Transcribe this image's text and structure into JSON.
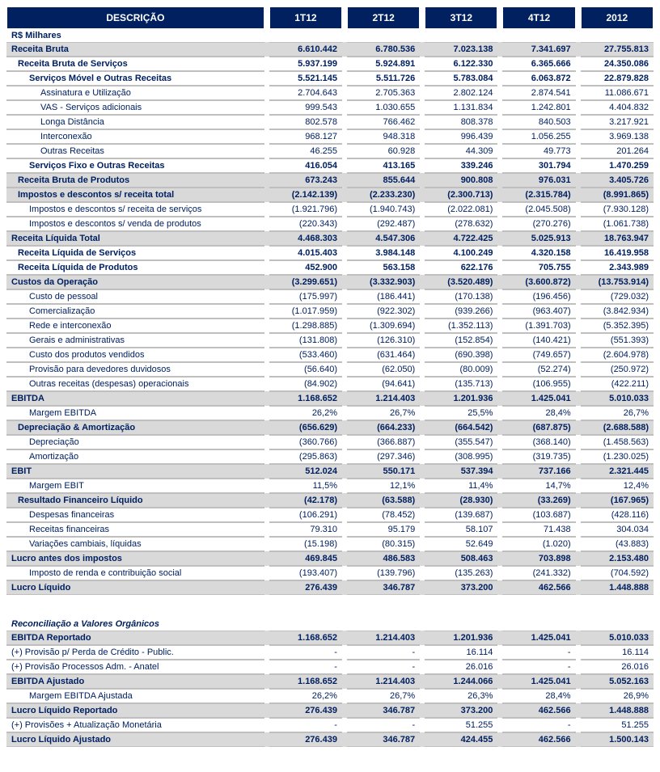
{
  "colors": {
    "header_bg": "#002060",
    "shade_bg": "#d9d9d9",
    "text": "#002060",
    "border": "#bfbfbf"
  },
  "font": {
    "family": "Verdana",
    "size_body": 11,
    "size_header": 12
  },
  "headers": {
    "desc": "DESCRIÇÃO",
    "c1": "1T12",
    "c2": "2T12",
    "c3": "3T12",
    "c4": "4T12",
    "c5": "2012"
  },
  "units": "R$ Milhares",
  "rows": [
    {
      "label": "Receita Bruta",
      "c": [
        "6.610.442",
        "6.780.536",
        "7.023.138",
        "7.341.697",
        "27.755.813"
      ],
      "cls": "shaded bold"
    },
    {
      "label": "Receita Bruta de Serviços",
      "c": [
        "5.937.199",
        "5.924.891",
        "6.122.330",
        "6.365.666",
        "24.350.086"
      ],
      "cls": "bold sub0"
    },
    {
      "label": "Serviços Móvel e Outras Receitas",
      "c": [
        "5.521.145",
        "5.511.726",
        "5.783.084",
        "6.063.872",
        "22.879.828"
      ],
      "cls": "bold sub1"
    },
    {
      "label": "Assinatura e Utilização",
      "c": [
        "2.704.643",
        "2.705.363",
        "2.802.124",
        "2.874.541",
        "11.086.671"
      ],
      "cls": "sub2"
    },
    {
      "label": "VAS - Serviços adicionais",
      "c": [
        "999.543",
        "1.030.655",
        "1.131.834",
        "1.242.801",
        "4.404.832"
      ],
      "cls": "sub2"
    },
    {
      "label": "Longa Distância",
      "c": [
        "802.578",
        "766.462",
        "808.378",
        "840.503",
        "3.217.921"
      ],
      "cls": "sub2"
    },
    {
      "label": "Interconexão",
      "c": [
        "968.127",
        "948.318",
        "996.439",
        "1.056.255",
        "3.969.138"
      ],
      "cls": "sub2"
    },
    {
      "label": "Outras Receitas",
      "c": [
        "46.255",
        "60.928",
        "44.309",
        "49.773",
        "201.264"
      ],
      "cls": "sub2"
    },
    {
      "label": "Serviços Fixo e Outras Receitas",
      "c": [
        "416.054",
        "413.165",
        "339.246",
        "301.794",
        "1.470.259"
      ],
      "cls": "bold sub1"
    },
    {
      "label": "Receita Bruta de Produtos",
      "c": [
        "673.243",
        "855.644",
        "900.808",
        "976.031",
        "3.405.726"
      ],
      "cls": "shaded bold sub0"
    },
    {
      "label": "Impostos e descontos s/ receita total",
      "c": [
        "(2.142.139)",
        "(2.233.230)",
        "(2.300.713)",
        "(2.315.784)",
        "(8.991.865)"
      ],
      "cls": "shaded bold sub0"
    },
    {
      "label": "Impostos e descontos s/ receita de serviços",
      "c": [
        "(1.921.796)",
        "(1.940.743)",
        "(2.022.081)",
        "(2.045.508)",
        "(7.930.128)"
      ],
      "cls": "sub1"
    },
    {
      "label": "Impostos e descontos s/ venda de produtos",
      "c": [
        "(220.343)",
        "(292.487)",
        "(278.632)",
        "(270.276)",
        "(1.061.738)"
      ],
      "cls": "sub1"
    },
    {
      "label": "Receita Líquida Total",
      "c": [
        "4.468.303",
        "4.547.306",
        "4.722.425",
        "5.025.913",
        "18.763.947"
      ],
      "cls": "shaded bold"
    },
    {
      "label": "Receita Líquida de Serviços",
      "c": [
        "4.015.403",
        "3.984.148",
        "4.100.249",
        "4.320.158",
        "16.419.958"
      ],
      "cls": "bold sub0"
    },
    {
      "label": "Receita Líquida de Produtos",
      "c": [
        "452.900",
        "563.158",
        "622.176",
        "705.755",
        "2.343.989"
      ],
      "cls": "bold sub0"
    },
    {
      "label": "Custos da Operação",
      "c": [
        "(3.299.651)",
        "(3.332.903)",
        "(3.520.489)",
        "(3.600.872)",
        "(13.753.914)"
      ],
      "cls": "shaded bold"
    },
    {
      "label": "Custo de pessoal",
      "c": [
        "(175.997)",
        "(186.441)",
        "(170.138)",
        "(196.456)",
        "(729.032)"
      ],
      "cls": "sub1"
    },
    {
      "label": "Comercialização",
      "c": [
        "(1.017.959)",
        "(922.302)",
        "(939.266)",
        "(963.407)",
        "(3.842.934)"
      ],
      "cls": "sub1"
    },
    {
      "label": "Rede e interconexão",
      "c": [
        "(1.298.885)",
        "(1.309.694)",
        "(1.352.113)",
        "(1.391.703)",
        "(5.352.395)"
      ],
      "cls": "sub1"
    },
    {
      "label": "Gerais e administrativas",
      "c": [
        "(131.808)",
        "(126.310)",
        "(152.854)",
        "(140.421)",
        "(551.393)"
      ],
      "cls": "sub1"
    },
    {
      "label": "Custo dos produtos vendidos",
      "c": [
        "(533.460)",
        "(631.464)",
        "(690.398)",
        "(749.657)",
        "(2.604.978)"
      ],
      "cls": "sub1"
    },
    {
      "label": "Provisão para devedores duvidosos",
      "c": [
        "(56.640)",
        "(62.050)",
        "(80.009)",
        "(52.274)",
        "(250.972)"
      ],
      "cls": "sub1"
    },
    {
      "label": "Outras receitas (despesas) operacionais",
      "c": [
        "(84.902)",
        "(94.641)",
        "(135.713)",
        "(106.955)",
        "(422.211)"
      ],
      "cls": "sub1"
    },
    {
      "label": "EBITDA",
      "c": [
        "1.168.652",
        "1.214.403",
        "1.201.936",
        "1.425.041",
        "5.010.033"
      ],
      "cls": "shaded bold"
    },
    {
      "label": "Margem EBITDA",
      "c": [
        "26,2%",
        "26,7%",
        "25,5%",
        "28,4%",
        "26,7%"
      ],
      "cls": "sub1"
    },
    {
      "label": "Depreciação & Amortização",
      "c": [
        "(656.629)",
        "(664.233)",
        "(664.542)",
        "(687.875)",
        "(2.688.588)"
      ],
      "cls": "shaded bold sub0"
    },
    {
      "label": "Depreciação",
      "c": [
        "(360.766)",
        "(366.887)",
        "(355.547)",
        "(368.140)",
        "(1.458.563)"
      ],
      "cls": "sub1"
    },
    {
      "label": "Amortização",
      "c": [
        "(295.863)",
        "(297.346)",
        "(308.995)",
        "(319.735)",
        "(1.230.025)"
      ],
      "cls": "sub1"
    },
    {
      "label": "EBIT",
      "c": [
        "512.024",
        "550.171",
        "537.394",
        "737.166",
        "2.321.445"
      ],
      "cls": "shaded bold"
    },
    {
      "label": "Margem EBIT",
      "c": [
        "11,5%",
        "12,1%",
        "11,4%",
        "14,7%",
        "12,4%"
      ],
      "cls": "sub1"
    },
    {
      "label": "Resultado Financeiro Líquido",
      "c": [
        "(42.178)",
        "(63.588)",
        "(28.930)",
        "(33.269)",
        "(167.965)"
      ],
      "cls": "shaded bold sub0"
    },
    {
      "label": "Despesas financeiras",
      "c": [
        "(106.291)",
        "(78.452)",
        "(139.687)",
        "(103.687)",
        "(428.116)"
      ],
      "cls": "sub1"
    },
    {
      "label": "Receitas financeiras",
      "c": [
        "79.310",
        "95.179",
        "58.107",
        "71.438",
        "304.034"
      ],
      "cls": "sub1"
    },
    {
      "label": "Variações cambiais, líquidas",
      "c": [
        "(15.198)",
        "(80.315)",
        "52.649",
        "(1.020)",
        "(43.883)"
      ],
      "cls": "sub1"
    },
    {
      "label": "Lucro antes dos impostos",
      "c": [
        "469.845",
        "486.583",
        "508.463",
        "703.898",
        "2.153.480"
      ],
      "cls": "shaded bold"
    },
    {
      "label": "Imposto de renda e contribuição social",
      "c": [
        "(193.407)",
        "(139.796)",
        "(135.263)",
        "(241.332)",
        "(704.592)"
      ],
      "cls": "sub1"
    },
    {
      "label": "Lucro Líquido",
      "c": [
        "276.439",
        "346.787",
        "373.200",
        "462.566",
        "1.448.888"
      ],
      "cls": "shaded bold"
    }
  ],
  "recon_title": "Reconciliação a Valores Orgânicos",
  "recon": [
    {
      "label": "EBITDA Reportado",
      "c": [
        "1.168.652",
        "1.214.403",
        "1.201.936",
        "1.425.041",
        "5.010.033"
      ],
      "cls": "shaded bold"
    },
    {
      "label": "(+) Provisão p/ Perda de Crédito - Public.",
      "c": [
        "-",
        "-",
        "16.114",
        "-",
        "16.114"
      ],
      "cls": ""
    },
    {
      "label": "(+) Provisão Processos Adm. - Anatel",
      "c": [
        "-",
        "-",
        "26.016",
        "-",
        "26.016"
      ],
      "cls": ""
    },
    {
      "label": "EBITDA Ajustado",
      "c": [
        "1.168.652",
        "1.214.403",
        "1.244.066",
        "1.425.041",
        "5.052.163"
      ],
      "cls": "shaded bold"
    },
    {
      "label": "Margem EBITDA Ajustada",
      "c": [
        "26,2%",
        "26,7%",
        "26,3%",
        "28,4%",
        "26,9%"
      ],
      "cls": "sub1"
    },
    {
      "label": "Lucro Líquido Reportado",
      "c": [
        "276.439",
        "346.787",
        "373.200",
        "462.566",
        "1.448.888"
      ],
      "cls": "shaded bold"
    },
    {
      "label": "(+) Provisões + Atualização Monetária",
      "c": [
        "-",
        "-",
        "51.255",
        "-",
        "51.255"
      ],
      "cls": ""
    },
    {
      "label": "Lucro Líquido Ajustado",
      "c": [
        "276.439",
        "346.787",
        "424.455",
        "462.566",
        "1.500.143"
      ],
      "cls": "shaded bold"
    }
  ]
}
